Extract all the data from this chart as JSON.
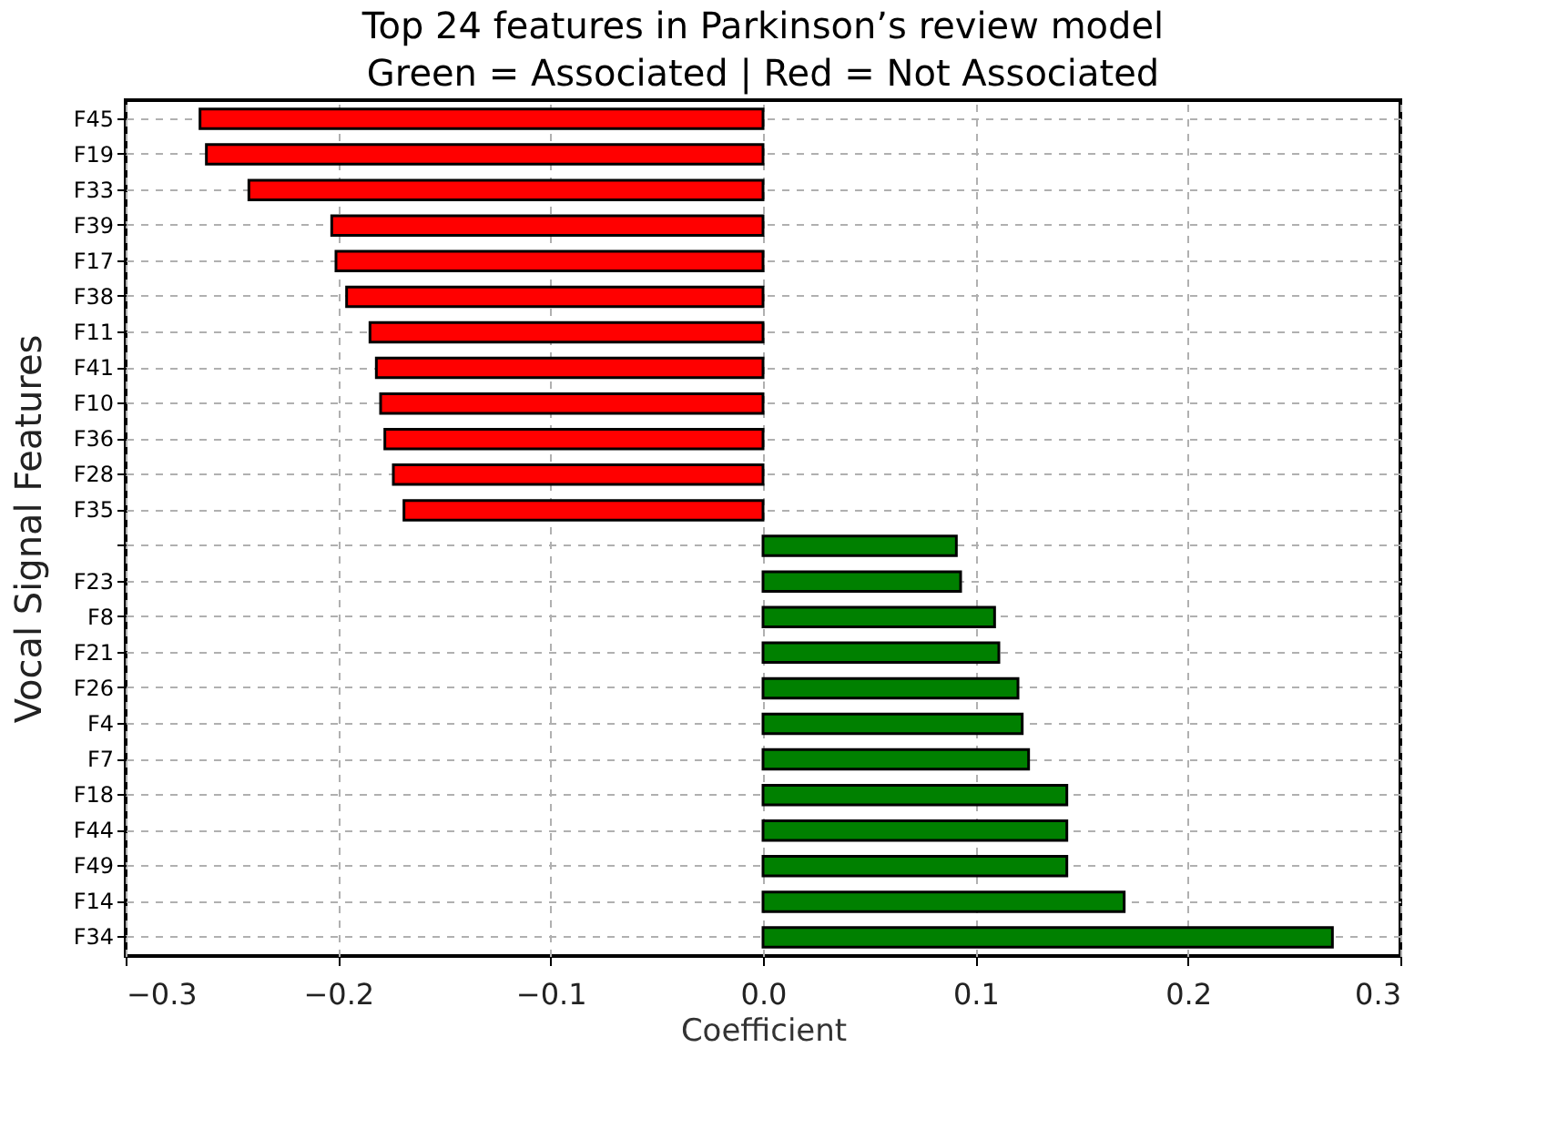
{
  "chart_data": {
    "type": "bar",
    "orientation": "horizontal",
    "title": "Top 24 features in Parkinson’s review model",
    "subtitle": "Green = Associated | Red = Not Associated",
    "xlabel": "Coefficient",
    "ylabel": "Vocal Signal Features",
    "categories": [
      "F45",
      "F19",
      "F33",
      "F39",
      "F17",
      "F38",
      "F11",
      "F41",
      "F10",
      "F36",
      "F28",
      "F35",
      null,
      "F23",
      "F8",
      "F21",
      "F26",
      "F4",
      "F7",
      "F18",
      "F44",
      "F49",
      "F14",
      "F34"
    ],
    "values": [
      -0.265,
      -0.262,
      -0.242,
      -0.203,
      -0.201,
      -0.196,
      -0.185,
      -0.182,
      -0.18,
      -0.178,
      -0.174,
      -0.169,
      0.091,
      0.093,
      0.109,
      0.111,
      0.12,
      0.122,
      0.125,
      0.143,
      0.143,
      0.143,
      0.17,
      0.268
    ],
    "colors": [
      "#ff0000",
      "#ff0000",
      "#ff0000",
      "#ff0000",
      "#ff0000",
      "#ff0000",
      "#ff0000",
      "#ff0000",
      "#ff0000",
      "#ff0000",
      "#ff0000",
      "#ff0000",
      "#008000",
      "#008000",
      "#008000",
      "#008000",
      "#008000",
      "#008000",
      "#008000",
      "#008000",
      "#008000",
      "#008000",
      "#008000",
      "#008000"
    ],
    "xlim": [
      -0.3,
      0.3
    ],
    "xticks": [
      {
        "value": -0.3,
        "label": "−0.3"
      },
      {
        "value": -0.2,
        "label": "−0.2"
      },
      {
        "value": -0.1,
        "label": "−0.1"
      },
      {
        "value": 0,
        "label": "0.0"
      },
      {
        "value": 0.1,
        "label": "0.1"
      },
      {
        "value": 0.2,
        "label": "0.2"
      },
      {
        "value": 0.3,
        "label": "0.3"
      }
    ],
    "grid": true
  }
}
